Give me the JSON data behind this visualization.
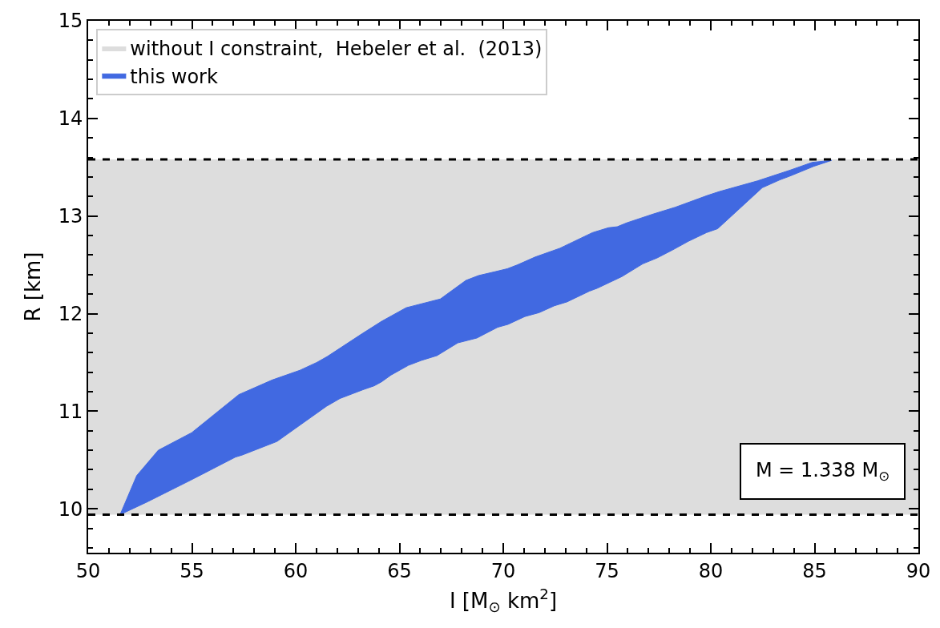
{
  "chart_data": {
    "type": "area",
    "xlabel": "I [M$_{⊙}$ km$^{2}$]",
    "ylabel": "R [km]",
    "xlim": [
      50,
      90
    ],
    "ylim": [
      9.55,
      15
    ],
    "xticks": [
      50,
      55,
      60,
      65,
      70,
      75,
      80,
      85,
      90,
      {
        "value": 51,
        "label": null
      },
      {
        "value": 52,
        "label": null
      },
      {
        "value": 53,
        "label": null
      },
      {
        "value": 54,
        "label": null
      },
      {
        "value": 56,
        "label": null
      },
      {
        "value": 57,
        "label": null
      },
      {
        "value": 58,
        "label": null
      },
      {
        "value": 59,
        "label": null
      },
      {
        "value": 61,
        "label": null
      },
      {
        "value": 62,
        "label": null
      },
      {
        "value": 63,
        "label": null
      },
      {
        "value": 64,
        "label": null
      },
      {
        "value": 66,
        "label": null
      },
      {
        "value": 67,
        "label": null
      },
      {
        "value": 68,
        "label": null
      },
      {
        "value": 69,
        "label": null
      },
      {
        "value": 71,
        "label": null
      },
      {
        "value": 72,
        "label": null
      },
      {
        "value": 73,
        "label": null
      },
      {
        "value": 74,
        "label": null
      },
      {
        "value": 76,
        "label": null
      },
      {
        "value": 77,
        "label": null
      },
      {
        "value": 78,
        "label": null
      },
      {
        "value": 79,
        "label": null
      },
      {
        "value": 81,
        "label": null
      },
      {
        "value": 82,
        "label": null
      },
      {
        "value": 83,
        "label": null
      },
      {
        "value": 84,
        "label": null
      },
      {
        "value": 86,
        "label": null
      },
      {
        "value": 87,
        "label": null
      },
      {
        "value": 88,
        "label": null
      },
      {
        "value": 89,
        "label": null
      }
    ],
    "yticks": [
      10,
      11,
      12,
      13,
      14,
      15,
      {
        "value": 9.6,
        "label": null
      },
      {
        "value": 9.8,
        "label": null
      },
      {
        "value": 10.2,
        "label": null
      },
      {
        "value": 10.4,
        "label": null
      },
      {
        "value": 10.6,
        "label": null
      },
      {
        "value": 10.8,
        "label": null
      },
      {
        "value": 11.2,
        "label": null
      },
      {
        "value": 11.4,
        "label": null
      },
      {
        "value": 11.6,
        "label": null
      },
      {
        "value": 11.8,
        "label": null
      },
      {
        "value": 12.2,
        "label": null
      },
      {
        "value": 12.4,
        "label": null
      },
      {
        "value": 12.6,
        "label": null
      },
      {
        "value": 12.8,
        "label": null
      },
      {
        "value": 13.2,
        "label": null
      },
      {
        "value": 13.4,
        "label": null
      },
      {
        "value": 13.6,
        "label": null
      },
      {
        "value": 13.8,
        "label": null
      },
      {
        "value": 14.2,
        "label": null
      },
      {
        "value": 14.4,
        "label": null
      },
      {
        "value": 14.6,
        "label": null
      },
      {
        "value": 14.8,
        "label": null
      }
    ],
    "bands": [
      {
        "axis": "y",
        "from": 9.94,
        "to": 13.58,
        "label": "without I constraint,  Hebeler et al.  (2013)",
        "color": "#dddddd"
      }
    ],
    "ref_lines": [
      {
        "axis": "y",
        "value": 9.94,
        "color": "#000000",
        "line_style": "dashed"
      },
      {
        "axis": "y",
        "value": 13.58,
        "color": "#000000",
        "line_style": "dashed"
      }
    ],
    "series": [
      {
        "name": "this work",
        "color": "#4169e1",
        "x": [
          51.54,
          52.34,
          53.38,
          54.99,
          57.26,
          58.87,
          60.21,
          61.02,
          61.52,
          63.17,
          64.13,
          65.32,
          66.97,
          68.2,
          68.81,
          69.62,
          70.2,
          70.69,
          71.54,
          72.73,
          74.3,
          75.07,
          75.49,
          75.95,
          77.22,
          78.29,
          79.83,
          80.4,
          82.25,
          83.82,
          84.89,
          85.82,
          84.97,
          83.82,
          83.32,
          82.48,
          80.33,
          79.79,
          78.91,
          78.14,
          77.41,
          76.72,
          75.72,
          74.53,
          74.15,
          73.07,
          72.46,
          71.73,
          71.04,
          70.23,
          69.73,
          68.73,
          67.81,
          66.81,
          66.05,
          65.43,
          64.59,
          64.13,
          63.78,
          63.24,
          62.13,
          61.48,
          59.1,
          57.41,
          57.1,
          54.91,
          52.84,
          51.54
        ],
        "values": [
          9.94,
          10.34,
          10.6,
          10.78,
          11.17,
          11.32,
          11.42,
          11.5,
          11.56,
          11.79,
          11.92,
          12.06,
          12.15,
          12.34,
          12.39,
          12.43,
          12.46,
          12.5,
          12.58,
          12.67,
          12.83,
          12.88,
          12.89,
          12.93,
          13.02,
          13.09,
          13.21,
          13.25,
          13.36,
          13.47,
          13.55,
          13.57,
          13.51,
          13.41,
          13.37,
          13.29,
          12.87,
          12.83,
          12.74,
          12.65,
          12.57,
          12.51,
          12.38,
          12.26,
          12.23,
          12.12,
          12.08,
          12.01,
          11.97,
          11.89,
          11.86,
          11.75,
          11.7,
          11.57,
          11.52,
          11.47,
          11.37,
          11.3,
          11.26,
          11.22,
          11.13,
          11.05,
          10.69,
          10.55,
          10.53,
          10.29,
          10.07,
          9.94
        ]
      }
    ],
    "annotations": [
      "M = 1.338 M$_{⊙}$"
    ],
    "legend": "top left"
  }
}
